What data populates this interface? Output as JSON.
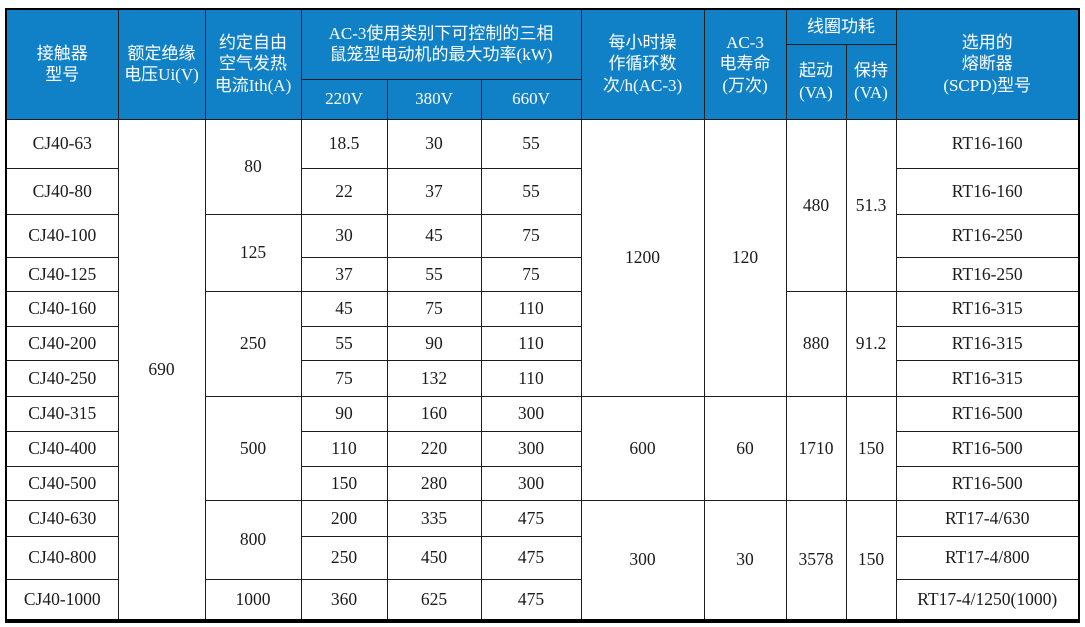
{
  "colors": {
    "header_bg": "#1081c6",
    "header_text": "#ffffff",
    "grid_line": "#1d1d1d",
    "body_text": "#1b1b1b"
  },
  "chart_data": {
    "type": "table",
    "headers": {
      "model": "接触器\n型号",
      "ui": "额定绝缘\n电压Ui(V)",
      "ith": "约定自由\n空气发热\n电流Ith(A)",
      "kw_group": "AC-3使用类别下可控制的三相\n鼠笼型电动机的最大功率(kW)",
      "v220": "220V",
      "v380": "380V",
      "v660": "660V",
      "cycles": "每小时操\n作循环数\n次/h(AC-3)",
      "life": "AC-3\n电寿命\n(万次)",
      "coil_group": "线圈功耗",
      "pickup": "起动\n(VA)",
      "hold": "保持\n(VA)",
      "fuse": "选用的\n熔断器\n(SCPD)型号"
    },
    "ui_value": "690",
    "rows": [
      {
        "model": "CJ40-63",
        "p220": "18.5",
        "p380": "30",
        "p660": "55",
        "fuse": "RT16-160"
      },
      {
        "model": "CJ40-80",
        "p220": "22",
        "p380": "37",
        "p660": "55",
        "fuse": "RT16-160"
      },
      {
        "model": "CJ40-100",
        "p220": "30",
        "p380": "45",
        "p660": "75",
        "fuse": "RT16-250"
      },
      {
        "model": "CJ40-125",
        "p220": "37",
        "p380": "55",
        "p660": "75",
        "fuse": "RT16-250"
      },
      {
        "model": "CJ40-160",
        "p220": "45",
        "p380": "75",
        "p660": "110",
        "fuse": "RT16-315"
      },
      {
        "model": "CJ40-200",
        "p220": "55",
        "p380": "90",
        "p660": "110",
        "fuse": "RT16-315"
      },
      {
        "model": "CJ40-250",
        "p220": "75",
        "p380": "132",
        "p660": "110",
        "fuse": "RT16-315"
      },
      {
        "model": "CJ40-315",
        "p220": "90",
        "p380": "160",
        "p660": "300",
        "fuse": "RT16-500"
      },
      {
        "model": "CJ40-400",
        "p220": "110",
        "p380": "220",
        "p660": "300",
        "fuse": "RT16-500"
      },
      {
        "model": "CJ40-500",
        "p220": "150",
        "p380": "280",
        "p660": "300",
        "fuse": "RT16-500"
      },
      {
        "model": "CJ40-630",
        "p220": "200",
        "p380": "335",
        "p660": "475",
        "fuse": "RT17-4/630"
      },
      {
        "model": "CJ40-800",
        "p220": "250",
        "p380": "450",
        "p660": "475",
        "fuse": "RT17-4/800"
      },
      {
        "model": "CJ40-1000",
        "p220": "360",
        "p380": "625",
        "p660": "475",
        "fuse": "RT17-4/1250(1000)"
      }
    ],
    "ith_groups": [
      {
        "value": "80",
        "rows": 2
      },
      {
        "value": "125",
        "rows": 2
      },
      {
        "value": "250",
        "rows": 3
      },
      {
        "value": "500",
        "rows": 3
      },
      {
        "value": "800",
        "rows": 2
      },
      {
        "value": "1000",
        "rows": 1
      }
    ],
    "cycle_groups": [
      {
        "cycles": "1200",
        "life": "120",
        "rows": 7
      },
      {
        "cycles": "600",
        "life": "60",
        "rows": 3
      },
      {
        "cycles": "300",
        "life": "30",
        "rows": 3
      }
    ],
    "coil_groups": [
      {
        "pickup": "480",
        "hold": "51.3",
        "rows": 4
      },
      {
        "pickup": "880",
        "hold": "91.2",
        "rows": 3
      },
      {
        "pickup": "1710",
        "hold": "150",
        "rows": 3
      },
      {
        "pickup": "3578",
        "hold": "150",
        "rows": 3
      }
    ]
  }
}
